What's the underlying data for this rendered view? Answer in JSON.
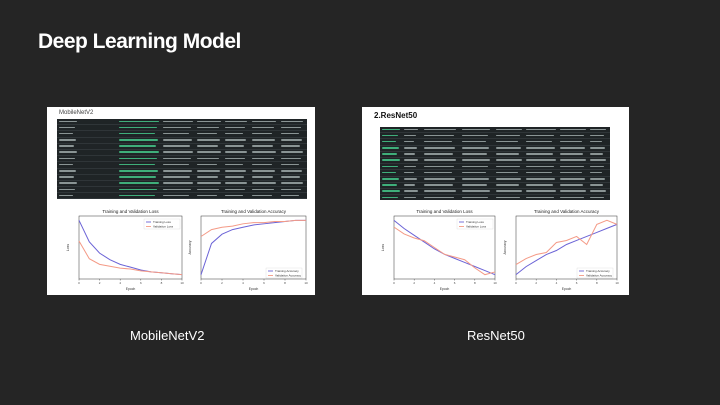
{
  "slide": {
    "title": "Deep Learning Model",
    "panels": [
      {
        "id": "mobilenet",
        "title": "MobileNetV2",
        "caption": "MobileNetV2"
      },
      {
        "id": "resnet",
        "title": "2.ResNet50",
        "caption": "ResNet50"
      }
    ]
  },
  "colors": {
    "background": "#252525",
    "train": "#6b63d6",
    "validation": "#f49a86",
    "terminal": "#1f2426"
  },
  "chart_data": [
    {
      "type": "line",
      "panel": "MobileNetV2",
      "title": "Training and Validation Loss",
      "xlabel": "Epoch",
      "ylabel": "Loss",
      "x": [
        0,
        1,
        2,
        3,
        4,
        5,
        6,
        7,
        8,
        9,
        10
      ],
      "series": [
        {
          "name": "Training Loss",
          "values": [
            1.15,
            0.92,
            0.8,
            0.73,
            0.68,
            0.65,
            0.62,
            0.6,
            0.59,
            0.58,
            0.57
          ]
        },
        {
          "name": "Validation Loss",
          "values": [
            0.93,
            0.74,
            0.68,
            0.66,
            0.64,
            0.63,
            0.61,
            0.6,
            0.59,
            0.58,
            0.57
          ]
        }
      ]
    },
    {
      "type": "line",
      "panel": "MobileNetV2",
      "title": "Training and Validation Accuracy",
      "xlabel": "Epoch",
      "ylabel": "Accuracy",
      "x": [
        0,
        1,
        2,
        3,
        4,
        5,
        6,
        7,
        8,
        9,
        10
      ],
      "series": [
        {
          "name": "Training Accuracy",
          "values": [
            0.45,
            0.72,
            0.8,
            0.84,
            0.86,
            0.88,
            0.89,
            0.9,
            0.91,
            0.92,
            0.92
          ]
        },
        {
          "name": "Validation Accuracy",
          "values": [
            0.78,
            0.84,
            0.86,
            0.87,
            0.89,
            0.9,
            0.9,
            0.91,
            0.91,
            0.92,
            0.92
          ]
        }
      ]
    },
    {
      "type": "line",
      "panel": "ResNet50",
      "title": "Training and Validation Loss",
      "xlabel": "Epoch",
      "ylabel": "Loss",
      "x": [
        0,
        1,
        2,
        3,
        4,
        5,
        6,
        7,
        8,
        9,
        10
      ],
      "series": [
        {
          "name": "Training Loss",
          "values": [
            1.3,
            1.24,
            1.19,
            1.14,
            1.09,
            1.05,
            1.02,
            0.99,
            0.96,
            0.93,
            0.9
          ]
        },
        {
          "name": "Validation Loss",
          "values": [
            1.25,
            1.2,
            1.17,
            1.15,
            1.1,
            1.05,
            1.03,
            1.01,
            0.95,
            0.9,
            0.92
          ]
        }
      ]
    },
    {
      "type": "line",
      "panel": "ResNet50",
      "title": "Training and Validation Accuracy",
      "xlabel": "Epoch",
      "ylabel": "Accuracy",
      "x": [
        0,
        1,
        2,
        3,
        4,
        5,
        6,
        7,
        8,
        9,
        10
      ],
      "series": [
        {
          "name": "Training Accuracy",
          "values": [
            0.3,
            0.34,
            0.37,
            0.4,
            0.42,
            0.45,
            0.47,
            0.49,
            0.51,
            0.53,
            0.55
          ]
        },
        {
          "name": "Validation Accuracy",
          "values": [
            0.35,
            0.38,
            0.4,
            0.41,
            0.46,
            0.47,
            0.49,
            0.45,
            0.55,
            0.57,
            0.55
          ]
        }
      ]
    }
  ]
}
